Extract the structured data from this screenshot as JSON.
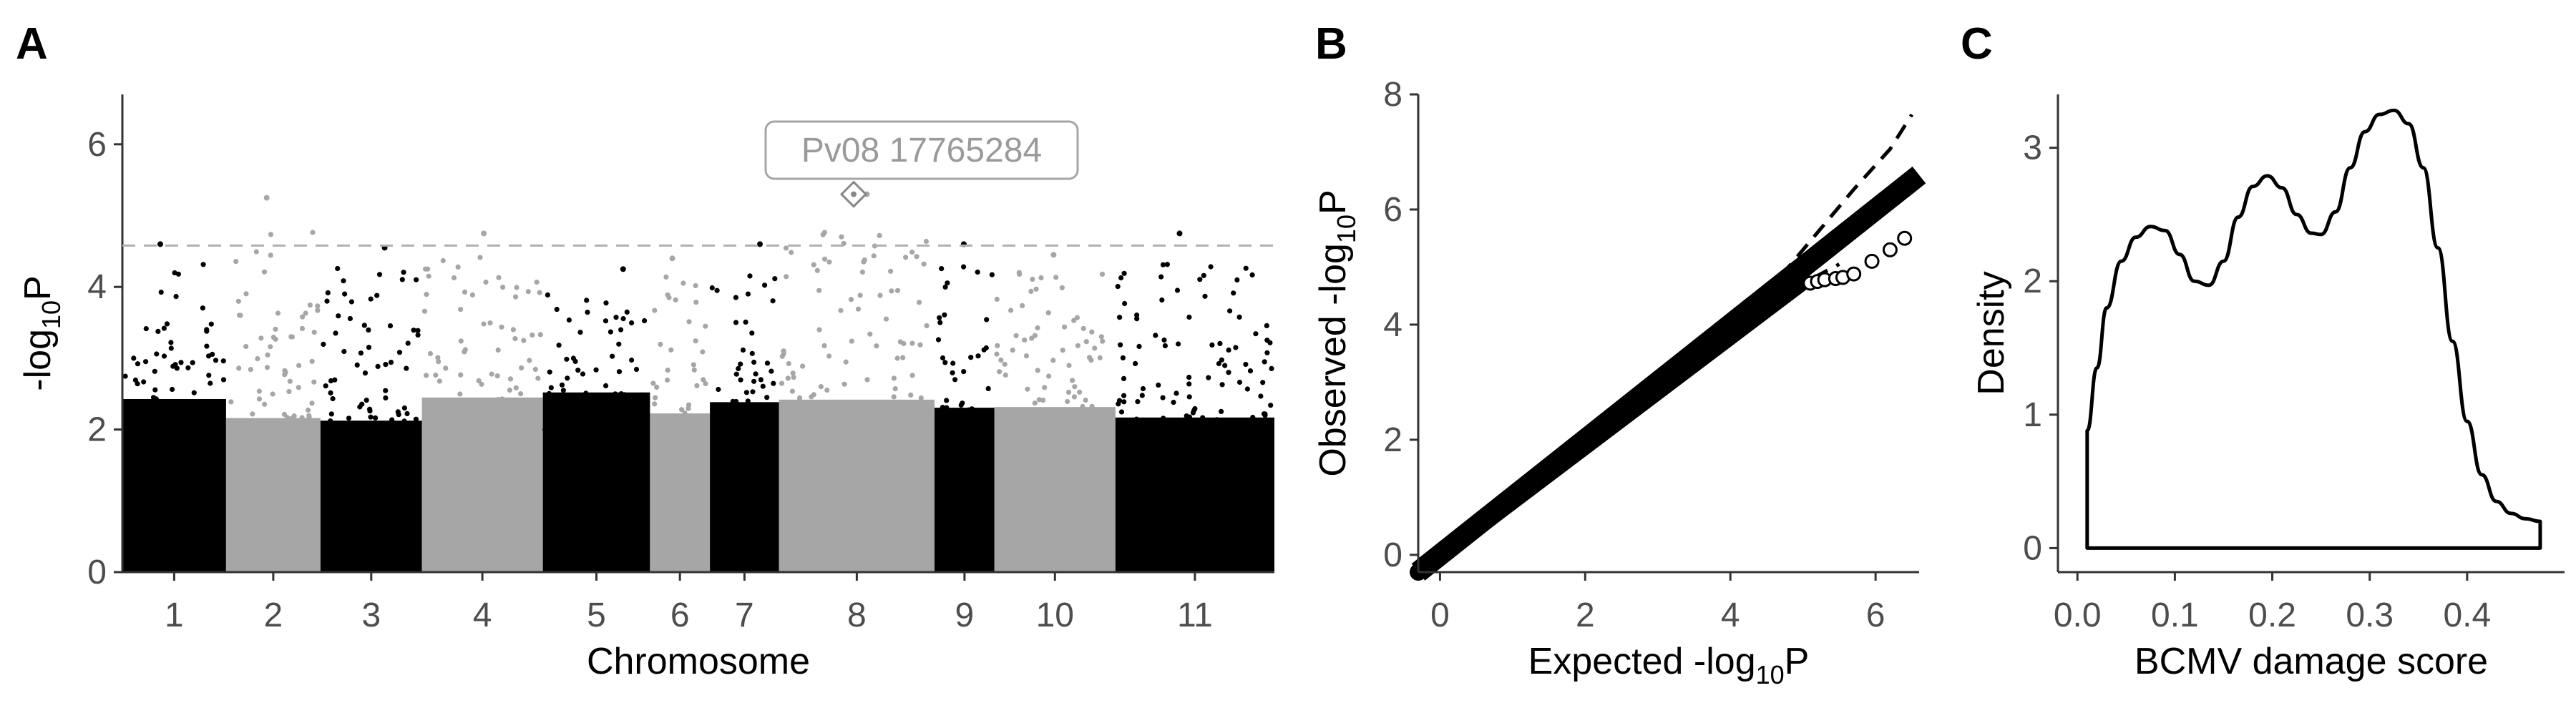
{
  "panels": {
    "a": {
      "letter": "A"
    },
    "b": {
      "letter": "B"
    },
    "c": {
      "letter": "C"
    }
  },
  "chart_data": [
    {
      "type": "scatter",
      "subtype": "manhattan",
      "xlabel": "Chromosome",
      "ylabel": "-log10P",
      "ylim": [
        0,
        6.7
      ],
      "yticks": [
        0,
        2,
        4,
        6
      ],
      "threshold": 4.58,
      "chromosomes": [
        "1",
        "2",
        "3",
        "4",
        "5",
        "6",
        "7",
        "8",
        "9",
        "10",
        "11"
      ],
      "chromosome_colors": [
        "#000000",
        "#a6a6a6"
      ],
      "annotation": {
        "label": "Pv08 17765284",
        "chromosome": "8",
        "position_fraction": 0.48,
        "value": 5.3
      },
      "top_hits": [
        {
          "chromosome": "1",
          "value": 4.6
        },
        {
          "chromosome": "2",
          "value": 5.25
        },
        {
          "chromosome": "3",
          "value": 4.55
        },
        {
          "chromosome": "4",
          "value": 4.75
        },
        {
          "chromosome": "5",
          "value": 4.25
        },
        {
          "chromosome": "6",
          "value": 4.4
        },
        {
          "chromosome": "7",
          "value": 4.6
        },
        {
          "chromosome": "8",
          "value": 5.3
        },
        {
          "chromosome": "9",
          "value": 4.6
        },
        {
          "chromosome": "10",
          "value": 4.45
        },
        {
          "chromosome": "11",
          "value": 4.75
        }
      ]
    },
    {
      "type": "scatter",
      "subtype": "qq",
      "xlabel": "Expected -log10P",
      "ylabel": "Observed -log10P",
      "xlim": [
        -0.3,
        6.6
      ],
      "ylim": [
        -0.3,
        8.0
      ],
      "xticks": [
        0,
        2,
        4,
        6
      ],
      "yticks": [
        0,
        2,
        4,
        6,
        8
      ],
      "identity_line": {
        "from": [
          -0.3,
          -0.3
        ],
        "to": [
          6.6,
          6.6
        ]
      },
      "ci_upper": [
        [
          4.7,
          4.85
        ],
        [
          5.2,
          5.6
        ],
        [
          5.7,
          6.35
        ],
        [
          6.2,
          7.05
        ],
        [
          6.5,
          7.65
        ]
      ],
      "ci_lower": [
        [
          4.7,
          4.55
        ],
        [
          5.2,
          4.85
        ],
        [
          5.5,
          5.05
        ]
      ],
      "outliers": [
        [
          5.1,
          4.72
        ],
        [
          5.2,
          4.75
        ],
        [
          5.3,
          4.78
        ],
        [
          5.45,
          4.8
        ],
        [
          5.55,
          4.82
        ],
        [
          5.7,
          4.88
        ],
        [
          5.95,
          5.1
        ],
        [
          6.2,
          5.3
        ],
        [
          6.4,
          5.5
        ]
      ]
    },
    {
      "type": "area",
      "subtype": "density",
      "xlabel": "BCMV damage score",
      "ylabel": "Density",
      "xlim": [
        -0.02,
        0.5
      ],
      "ylim": [
        -0.18,
        3.4
      ],
      "xticks": [
        0.0,
        0.1,
        0.2,
        0.3,
        0.4
      ],
      "yticks": [
        0,
        1,
        2,
        3
      ],
      "x": [
        0.01,
        0.02,
        0.03,
        0.045,
        0.06,
        0.075,
        0.09,
        0.105,
        0.12,
        0.135,
        0.15,
        0.165,
        0.18,
        0.195,
        0.21,
        0.225,
        0.24,
        0.25,
        0.265,
        0.28,
        0.295,
        0.31,
        0.325,
        0.34,
        0.355,
        0.37,
        0.385,
        0.4,
        0.415,
        0.43,
        0.445,
        0.46,
        0.475
      ],
      "y": [
        0.88,
        1.35,
        1.8,
        2.15,
        2.33,
        2.41,
        2.38,
        2.2,
        2.0,
        1.97,
        2.15,
        2.48,
        2.71,
        2.79,
        2.7,
        2.5,
        2.36,
        2.35,
        2.52,
        2.85,
        3.12,
        3.25,
        3.28,
        3.18,
        2.85,
        2.25,
        1.55,
        0.95,
        0.55,
        0.35,
        0.26,
        0.22,
        0.2
      ]
    }
  ]
}
